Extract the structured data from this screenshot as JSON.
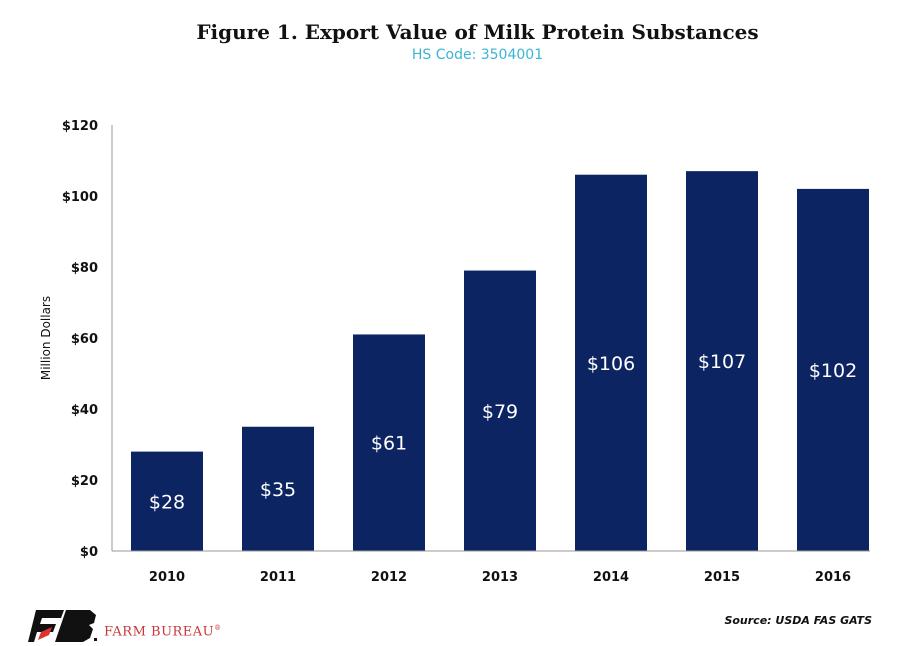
{
  "chart_data": {
    "type": "bar",
    "title": "Figure 1. Export Value of Milk Protein Substances",
    "subtitle": "HS Code: 3504001",
    "ylabel": "Million Dollars",
    "xlabel": "",
    "categories": [
      "2010",
      "2011",
      "2012",
      "2013",
      "2014",
      "2015",
      "2016"
    ],
    "values": [
      28,
      35,
      61,
      79,
      106,
      107,
      102
    ],
    "data_labels": [
      "$28",
      "$35",
      "$61",
      "$79",
      "$106",
      "$107",
      "$102"
    ],
    "ylim": [
      0,
      120
    ],
    "yticks": [
      0,
      20,
      40,
      60,
      80,
      100,
      120
    ],
    "ytick_labels": [
      "$0",
      "$20",
      "$40",
      "$60",
      "$80",
      "$100",
      "$120"
    ],
    "grid": false,
    "bar_color": "#0c2461",
    "label_color": "#ffffff"
  },
  "source": "Source: USDA FAS GATS",
  "logo": {
    "text": "FARM BUREAU",
    "mark": "®",
    "colors": [
      "#111111",
      "#e0322f"
    ]
  }
}
